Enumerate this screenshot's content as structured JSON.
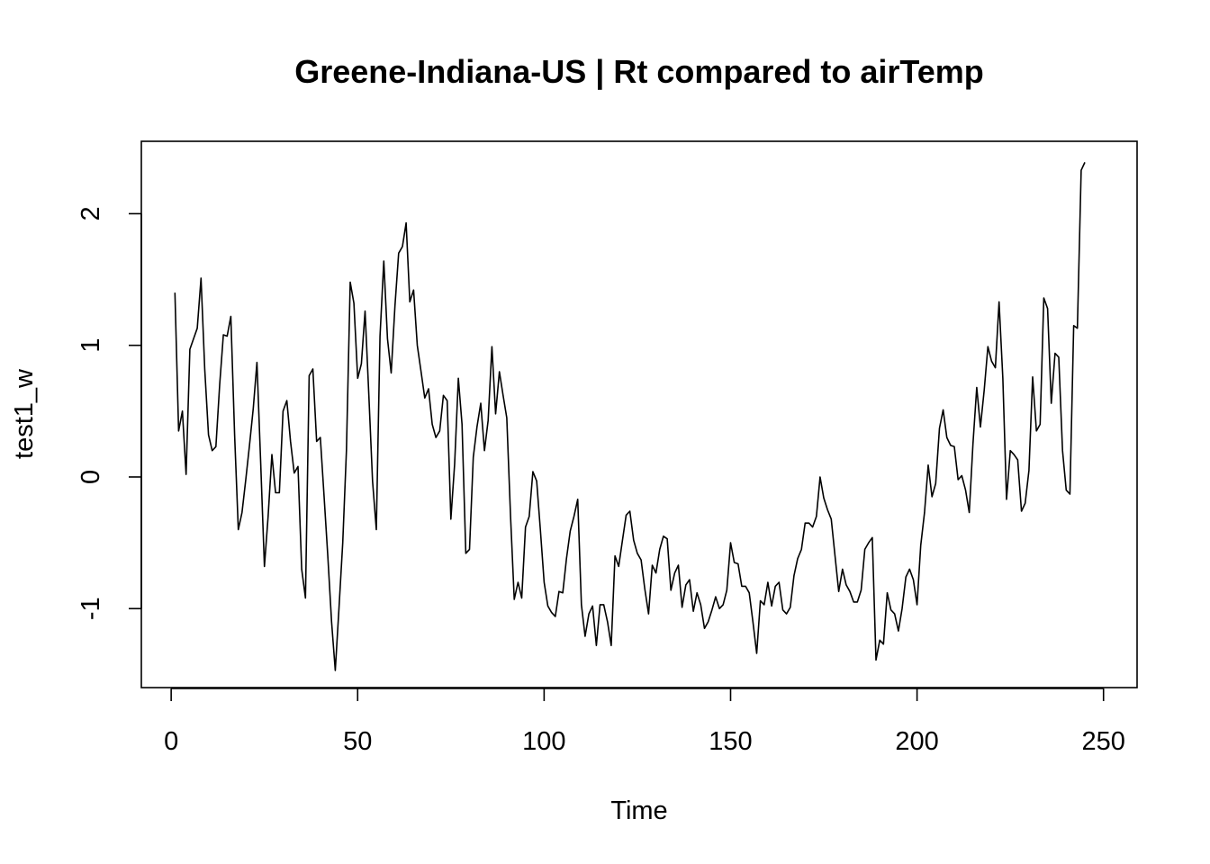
{
  "chart_data": {
    "type": "line",
    "title": "Greene-Indiana-US | Rt compared to airTemp",
    "xlabel": "Time",
    "ylabel": "test1_w",
    "xlim": [
      -8,
      259
    ],
    "ylim": [
      -1.6,
      2.55
    ],
    "xticks": [
      0,
      50,
      100,
      150,
      200,
      250
    ],
    "yticks": [
      -1,
      0,
      1,
      2
    ],
    "xtick_labels": [
      "0",
      "50",
      "100",
      "150",
      "200",
      "250"
    ],
    "ytick_labels": [
      "-1",
      "0",
      "1",
      "2"
    ],
    "grid": false,
    "legend": "none",
    "line_color": "#000000",
    "x_start": 1,
    "values": [
      1.4,
      0.35,
      0.5,
      0.02,
      0.97,
      1.05,
      1.13,
      1.51,
      0.82,
      0.32,
      0.2,
      0.23,
      0.7,
      1.08,
      1.07,
      1.22,
      0.32,
      -0.4,
      -0.27,
      -0.02,
      0.24,
      0.52,
      0.87,
      0.1,
      -0.68,
      -0.3,
      0.17,
      -0.12,
      -0.12,
      0.5,
      0.58,
      0.27,
      0.03,
      0.08,
      -0.7,
      -0.92,
      0.77,
      0.82,
      0.27,
      0.3,
      -0.15,
      -0.6,
      -1.1,
      -1.47,
      -1.0,
      -0.5,
      0.2,
      1.48,
      1.32,
      0.75,
      0.86,
      1.26,
      0.62,
      -0.03,
      -0.4,
      1.07,
      1.64,
      1.05,
      0.79,
      1.3,
      1.7,
      1.75,
      1.93,
      1.33,
      1.42,
      1.0,
      0.8,
      0.6,
      0.67,
      0.4,
      0.3,
      0.35,
      0.62,
      0.58,
      -0.32,
      0.1,
      0.75,
      0.4,
      -0.58,
      -0.55,
      0.15,
      0.38,
      0.56,
      0.2,
      0.43,
      0.99,
      0.48,
      0.8,
      0.62,
      0.45,
      -0.3,
      -0.93,
      -0.8,
      -0.92,
      -0.38,
      -0.3,
      0.04,
      -0.03,
      -0.4,
      -0.8,
      -0.98,
      -1.03,
      -1.06,
      -0.87,
      -0.88,
      -0.62,
      -0.41,
      -0.3,
      -0.17,
      -0.97,
      -1.21,
      -1.04,
      -0.98,
      -1.28,
      -0.97,
      -0.97,
      -1.1,
      -1.28,
      -0.6,
      -0.68,
      -0.48,
      -0.29,
      -0.26,
      -0.48,
      -0.58,
      -0.63,
      -0.85,
      -1.04,
      -0.67,
      -0.73,
      -0.55,
      -0.45,
      -0.47,
      -0.86,
      -0.73,
      -0.67,
      -0.99,
      -0.82,
      -0.78,
      -1.02,
      -0.88,
      -0.97,
      -1.15,
      -1.1,
      -1.01,
      -0.91,
      -1.0,
      -0.97,
      -0.86,
      -0.5,
      -0.65,
      -0.66,
      -0.83,
      -0.83,
      -0.88,
      -1.1,
      -1.34,
      -0.94,
      -0.97,
      -0.8,
      -0.98,
      -0.83,
      -0.8,
      -1.01,
      -1.04,
      -0.99,
      -0.75,
      -0.62,
      -0.55,
      -0.35,
      -0.35,
      -0.38,
      -0.3,
      0.0,
      -0.16,
      -0.25,
      -0.32,
      -0.6,
      -0.87,
      -0.7,
      -0.82,
      -0.87,
      -0.95,
      -0.95,
      -0.86,
      -0.55,
      -0.5,
      -0.46,
      -1.39,
      -1.24,
      -1.27,
      -0.88,
      -1.01,
      -1.04,
      -1.17,
      -1.0,
      -0.76,
      -0.7,
      -0.78,
      -0.97,
      -0.52,
      -0.27,
      0.09,
      -0.15,
      -0.05,
      0.37,
      0.51,
      0.3,
      0.24,
      0.23,
      -0.02,
      0.01,
      -0.1,
      -0.27,
      0.25,
      0.68,
      0.38,
      0.66,
      0.99,
      0.88,
      0.83,
      1.33,
      0.75,
      -0.17,
      0.2,
      0.17,
      0.13,
      -0.26,
      -0.2,
      0.05,
      0.76,
      0.35,
      0.4,
      1.36,
      1.28,
      0.56,
      0.94,
      0.91,
      0.2,
      -0.1,
      -0.13,
      1.15,
      1.13,
      2.33,
      2.39
    ]
  }
}
